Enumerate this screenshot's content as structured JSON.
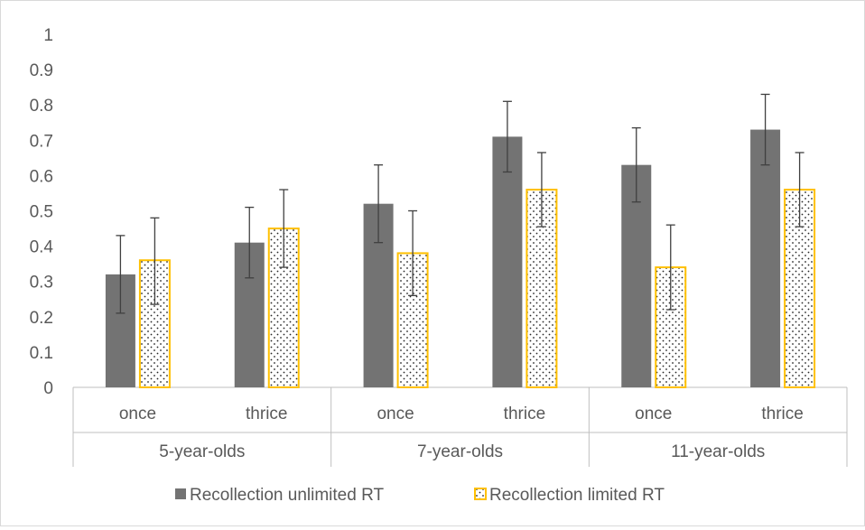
{
  "chart_data": {
    "type": "bar",
    "title": "",
    "xlabel": "",
    "ylabel": "",
    "ylim": [
      0,
      1
    ],
    "yticks": [
      "0",
      "0.1",
      "0.2",
      "0.3",
      "0.4",
      "0.5",
      "0.6",
      "0.7",
      "0.8",
      "0.9",
      "1"
    ],
    "groups": [
      "5-year-olds",
      "7-year-olds",
      "11-year-olds"
    ],
    "categories": [
      "once",
      "thrice",
      "once",
      "thrice",
      "once",
      "thrice"
    ],
    "series": [
      {
        "name": "Recollection unlimited RT",
        "values": [
          0.32,
          0.41,
          0.52,
          0.71,
          0.63,
          0.73
        ],
        "error_low": [
          0.21,
          0.31,
          0.41,
          0.61,
          0.525,
          0.63
        ],
        "error_high": [
          0.43,
          0.51,
          0.63,
          0.81,
          0.735,
          0.83
        ],
        "color": "#737373",
        "pattern": "solid"
      },
      {
        "name": "Recollection limited RT",
        "values": [
          0.36,
          0.45,
          0.38,
          0.56,
          0.34,
          0.56
        ],
        "error_low": [
          0.235,
          0.34,
          0.26,
          0.455,
          0.22,
          0.455
        ],
        "error_high": [
          0.48,
          0.56,
          0.5,
          0.665,
          0.46,
          0.665
        ],
        "color": "#ffc000",
        "pattern": "dotted"
      }
    ],
    "grid": false,
    "legend": "bottom"
  }
}
